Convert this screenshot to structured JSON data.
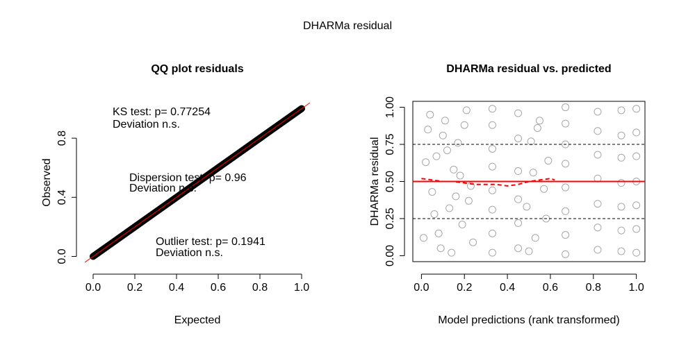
{
  "title": "DHARMa residual",
  "chart_data": [
    {
      "type": "line",
      "title": "QQ plot residuals",
      "x_label": "Expected",
      "y_label": "Observed",
      "x": [
        0,
        0.1,
        0.2,
        0.3,
        0.4,
        0.5,
        0.6,
        0.7,
        0.8,
        0.9,
        1.0
      ],
      "values": [
        0,
        0.1,
        0.2,
        0.3,
        0.4,
        0.5,
        0.6,
        0.7,
        0.8,
        0.9,
        1.0
      ],
      "color": "#000000",
      "reference_color": "#ff0000",
      "xlim": [
        -0.04,
        1.04
      ],
      "ylim": [
        -0.04,
        1.04
      ],
      "xticks": [
        {
          "value": 0,
          "label": "0.0"
        },
        {
          "value": 0.2,
          "label": "0.2"
        },
        {
          "value": 0.4,
          "label": "0.4"
        },
        {
          "value": 0.6,
          "label": "0.6"
        },
        {
          "value": 0.8,
          "label": "0.8"
        },
        {
          "value": 1,
          "label": "1.0"
        }
      ],
      "yticks": [
        {
          "value": 0,
          "label": "0.0"
        },
        {
          "value": 0.4,
          "label": "0.4"
        },
        {
          "value": 0.8,
          "label": "0.8"
        }
      ],
      "annotations": [
        "KS test: p= 0.77254",
        "Deviation  n.s.",
        "Dispersion test: p= 0.96",
        "Deviation  n.s.",
        "Outlier test: p= 0.1941",
        "Deviation  n.s."
      ]
    },
    {
      "type": "scatter",
      "title": "DHARMa residual vs. predicted",
      "x_label": "Model predictions (rank transformed)",
      "y_label": "DHARMa residual",
      "x": [
        0.01,
        0.03,
        0.05,
        0.07,
        0.09,
        0.11,
        0.13,
        0.15,
        0.17,
        0.19,
        0.21,
        0.23,
        0.02,
        0.06,
        0.1,
        0.14,
        0.18,
        0.22,
        0.04,
        0.08,
        0.12,
        0.16,
        0.2,
        0.24,
        0.49,
        0.51,
        0.53,
        0.55,
        0.57,
        0.59,
        0.5,
        0.54,
        0.58,
        0.52,
        0.33,
        0.33,
        0.33,
        0.33,
        0.33,
        0.33,
        0.33,
        0.33,
        0.45,
        0.45,
        0.45,
        0.45,
        0.45,
        0.45,
        0.67,
        0.67,
        0.67,
        0.67,
        0.67,
        0.67,
        0.67,
        0.67,
        0.82,
        0.82,
        0.82,
        0.82,
        0.82,
        0.82,
        0.82,
        0.93,
        0.93,
        0.93,
        0.93,
        0.93,
        0.93,
        0.93,
        1.0,
        1.0,
        1.0,
        1.0,
        1.0,
        1.0,
        1.0
      ],
      "values": [
        0.12,
        0.85,
        0.43,
        0.67,
        0.05,
        0.91,
        0.32,
        0.58,
        0.76,
        0.21,
        0.98,
        0.47,
        0.63,
        0.28,
        0.81,
        0.02,
        0.54,
        0.37,
        0.95,
        0.15,
        0.71,
        0.4,
        0.88,
        0.09,
        0.33,
        0.77,
        0.12,
        0.91,
        0.45,
        0.64,
        0.03,
        0.86,
        0.25,
        0.56,
        0.02,
        0.15,
        0.31,
        0.44,
        0.6,
        0.72,
        0.88,
        0.99,
        0.05,
        0.22,
        0.38,
        0.57,
        0.79,
        0.96,
        0.01,
        0.14,
        0.3,
        0.46,
        0.62,
        0.75,
        0.89,
        1.0,
        0.04,
        0.19,
        0.35,
        0.52,
        0.68,
        0.84,
        0.97,
        0.03,
        0.17,
        0.33,
        0.49,
        0.66,
        0.81,
        0.98,
        0.02,
        0.18,
        0.34,
        0.5,
        0.67,
        0.83,
        0.99
      ],
      "color": "#000000",
      "hlines": [
        {
          "value": 0.25,
          "color": "#000000",
          "style": "dashed"
        },
        {
          "value": 0.5,
          "color": "#ff0000",
          "style": "solid"
        },
        {
          "value": 0.75,
          "color": "#000000",
          "style": "dashed"
        }
      ],
      "smooth": {
        "color": "#ff0000",
        "x": [
          0,
          0.05,
          0.1,
          0.15,
          0.2,
          0.25,
          0.3,
          0.35,
          0.4,
          0.45,
          0.5,
          0.55,
          0.6,
          0.62,
          0.7,
          0.78,
          0.9,
          1.0
        ],
        "values": [
          0.52,
          0.51,
          0.5,
          0.5,
          0.49,
          0.48,
          0.48,
          0.48,
          0.47,
          0.48,
          0.5,
          0.51,
          0.52,
          0.51,
          null,
          0.5,
          0.5,
          0.5
        ]
      },
      "xlim": [
        -0.04,
        1.04
      ],
      "ylim": [
        -0.04,
        1.04
      ],
      "xticks": [
        {
          "value": 0,
          "label": "0.0"
        },
        {
          "value": 0.2,
          "label": "0.2"
        },
        {
          "value": 0.4,
          "label": "0.4"
        },
        {
          "value": 0.6,
          "label": "0.6"
        },
        {
          "value": 0.8,
          "label": "0.8"
        },
        {
          "value": 1,
          "label": "1.0"
        }
      ],
      "yticks": [
        {
          "value": 0,
          "label": "0.00"
        },
        {
          "value": 0.25,
          "label": "0.25"
        },
        {
          "value": 0.5,
          "label": "0.50"
        },
        {
          "value": 0.75,
          "label": "0.75"
        },
        {
          "value": 1,
          "label": "1.00"
        }
      ]
    }
  ]
}
